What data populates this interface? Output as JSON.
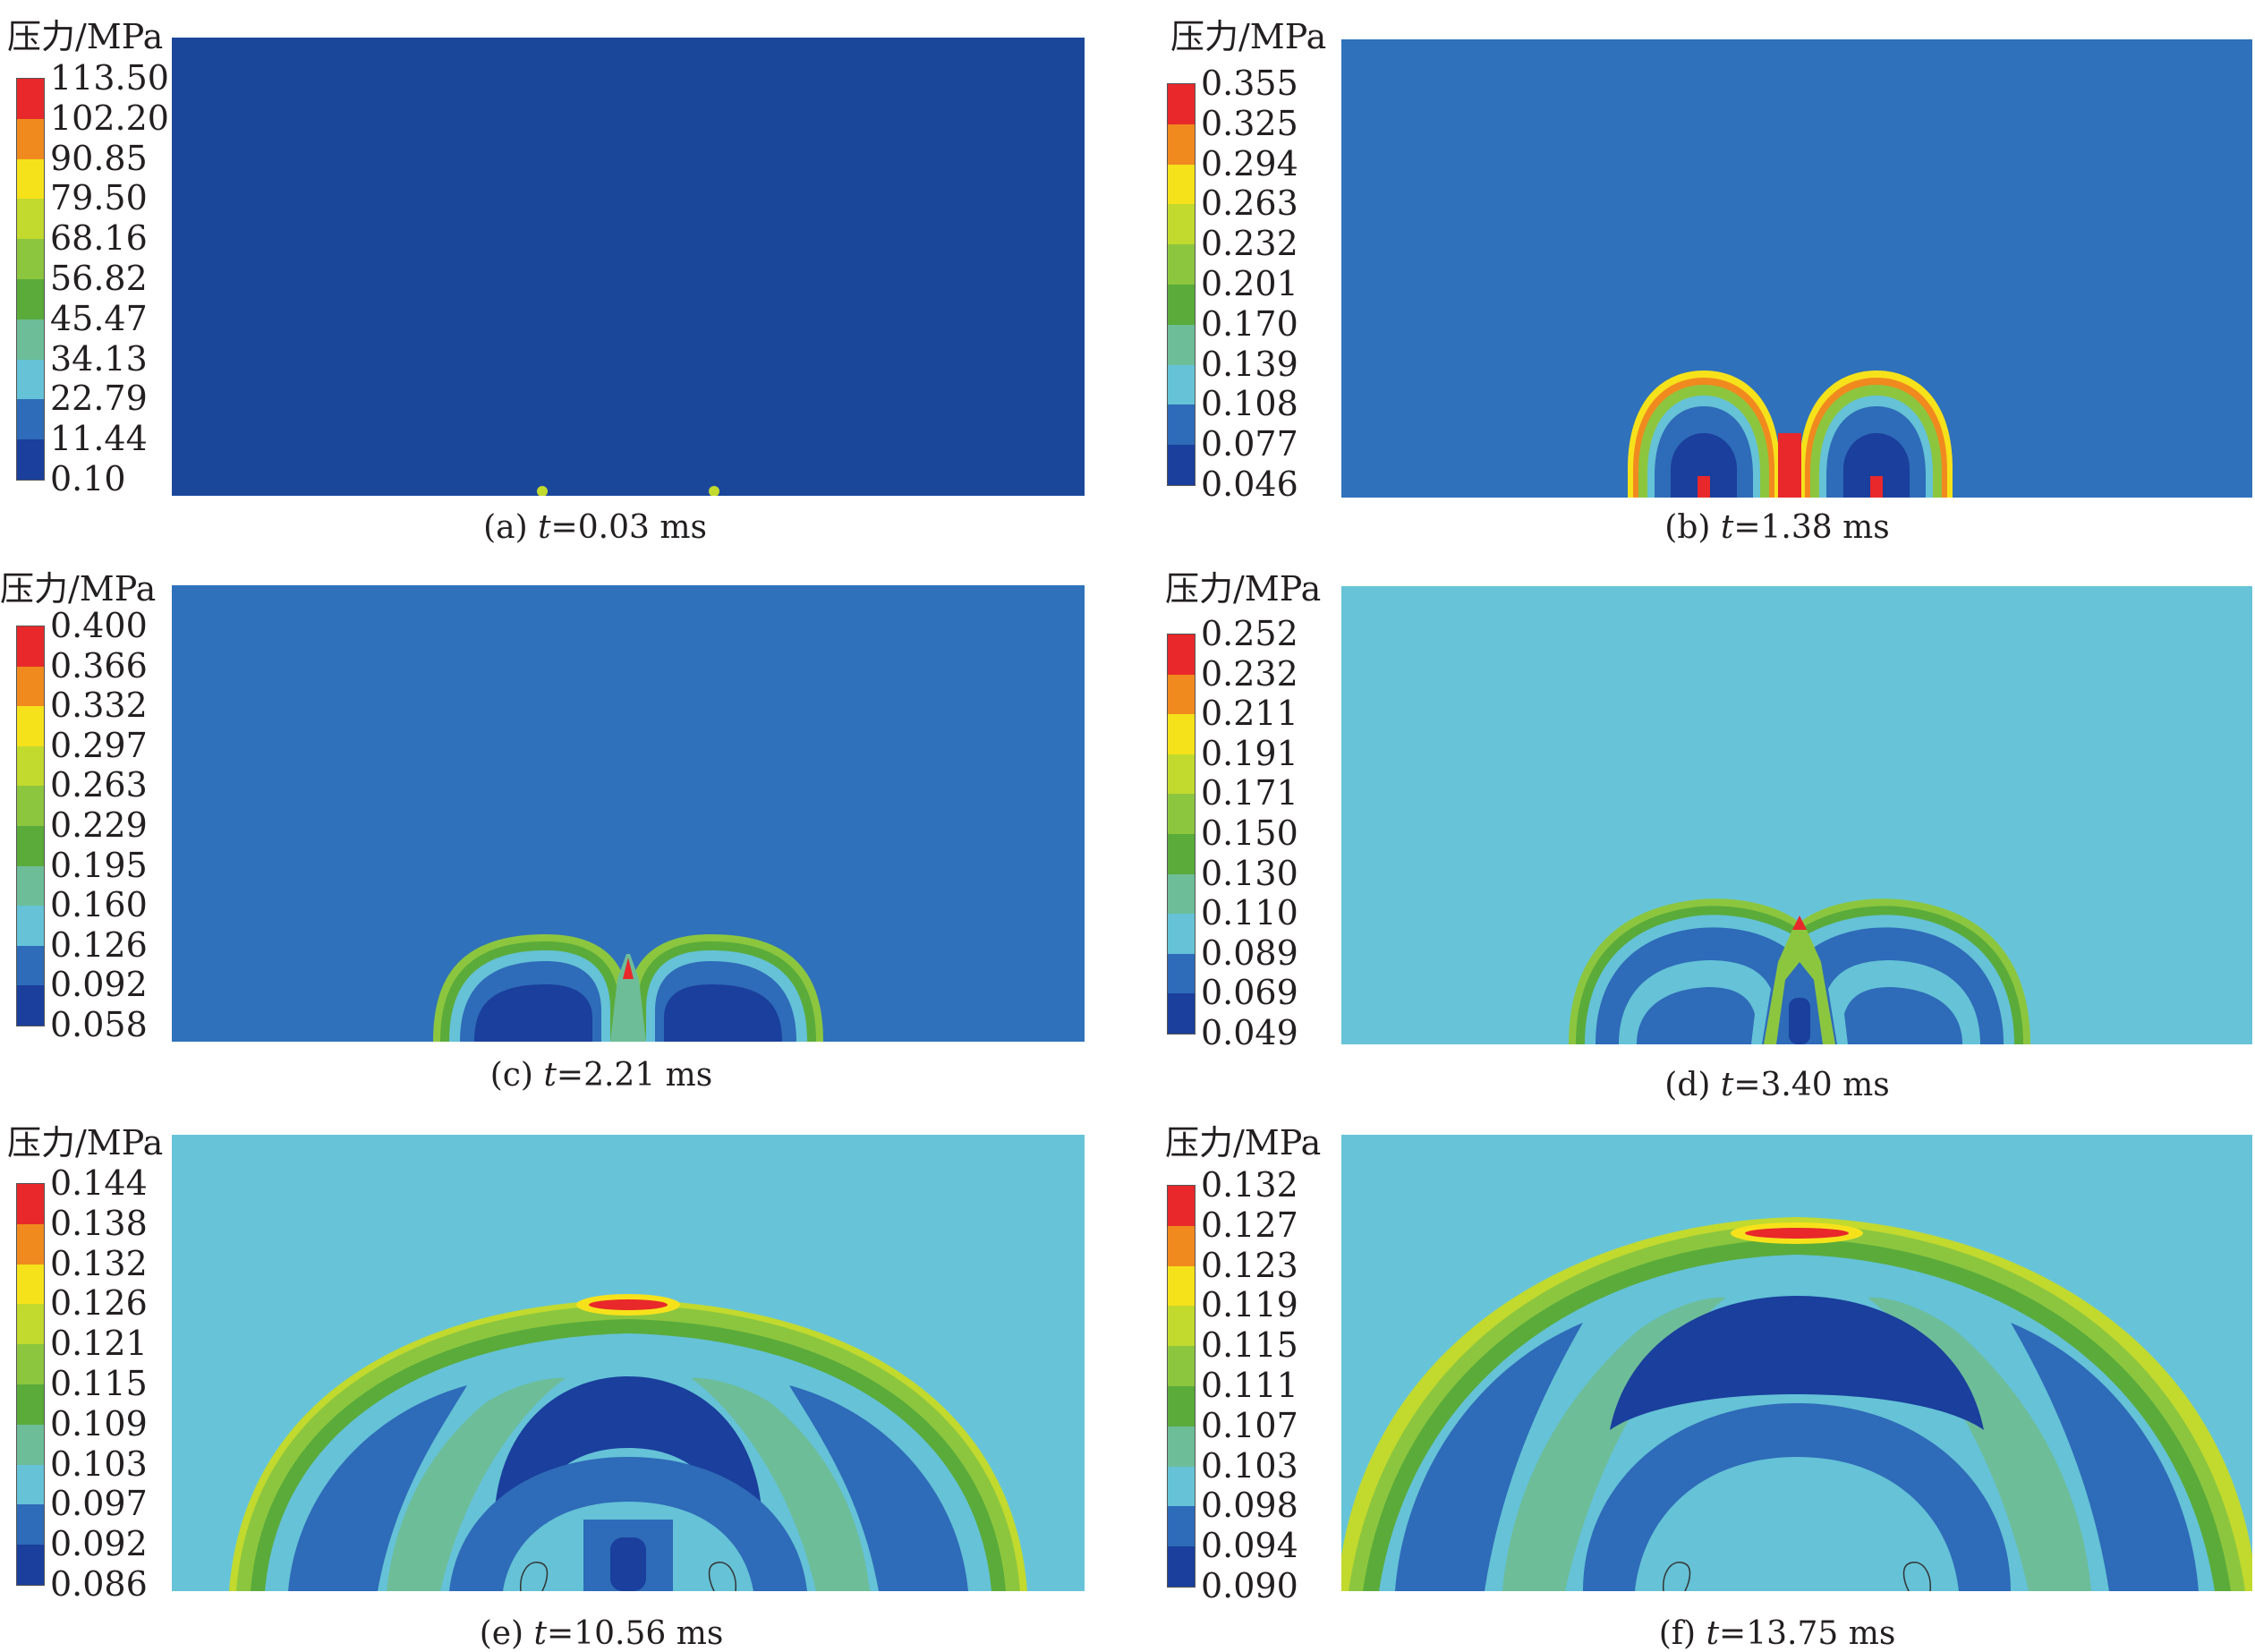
{
  "legend_title": "压力/MPa",
  "colors": [
    "#1a3f9c",
    "#2e6bb8",
    "#65c2d7",
    "#6dbd98",
    "#5aab3a",
    "#8cc63f",
    "#c2d92e",
    "#f6e21b",
    "#f08a1f",
    "#e8282b"
  ],
  "panels": [
    {
      "label": "(a)",
      "t_var": "t",
      "t_value": "=0.03 ms",
      "ticks": [
        "113.50",
        "102.20",
        "90.85",
        "79.50",
        "68.16",
        "56.82",
        "45.47",
        "34.13",
        "22.79",
        "11.44",
        "0.10"
      ],
      "background": "#1b479b"
    },
    {
      "label": "(b)",
      "t_var": "t",
      "t_value": "=1.38 ms",
      "ticks": [
        "0.355",
        "0.325",
        "0.294",
        "0.263",
        "0.232",
        "0.201",
        "0.170",
        "0.139",
        "0.108",
        "0.077",
        "0.046"
      ],
      "background": "#2f71ba"
    },
    {
      "label": "(c)",
      "t_var": "t",
      "t_value": "=2.21 ms",
      "ticks": [
        "0.400",
        "0.366",
        "0.332",
        "0.297",
        "0.263",
        "0.229",
        "0.195",
        "0.160",
        "0.126",
        "0.092",
        "0.058"
      ],
      "background": "#2f71ba"
    },
    {
      "label": "(d)",
      "t_var": "t",
      "t_value": "=3.40 ms",
      "ticks": [
        "0.252",
        "0.232",
        "0.211",
        "0.191",
        "0.171",
        "0.150",
        "0.130",
        "0.110",
        "0.089",
        "0.069",
        "0.049"
      ],
      "background": "#67c4d8"
    },
    {
      "label": "(e)",
      "t_var": "t",
      "t_value": "=10.56 ms",
      "ticks": [
        "0.144",
        "0.138",
        "0.132",
        "0.126",
        "0.121",
        "0.115",
        "0.109",
        "0.103",
        "0.097",
        "0.092",
        "0.086"
      ],
      "background": "#67c4d8"
    },
    {
      "label": "(f)",
      "t_var": "t",
      "t_value": "=13.75 ms",
      "ticks": [
        "0.132",
        "0.127",
        "0.123",
        "0.119",
        "0.115",
        "0.111",
        "0.107",
        "0.103",
        "0.098",
        "0.094",
        "0.090"
      ],
      "background": "#67c4d8"
    }
  ]
}
